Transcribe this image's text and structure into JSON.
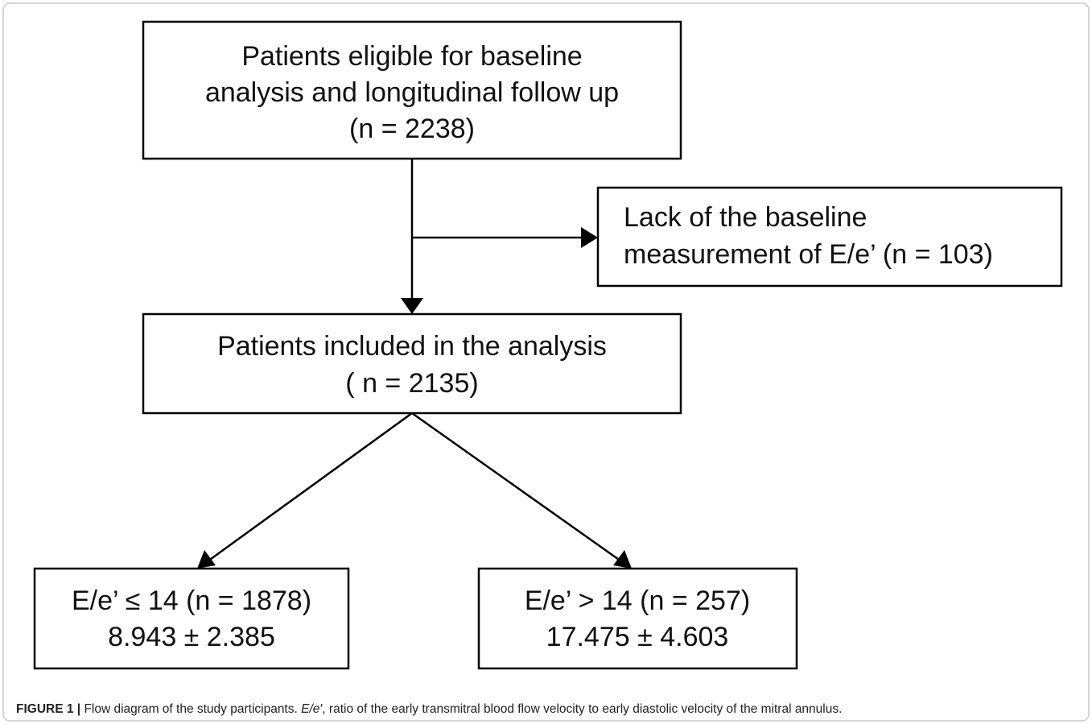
{
  "nodes": [
    {
      "lines": [
        "Patients eligible for baseline",
        "analysis and longitudinal follow up",
        "(n = 2238)"
      ]
    },
    {
      "lines": [
        "Lack of the baseline",
        "measurement of E/e’ (n = 103)"
      ]
    },
    {
      "lines": [
        "Patients included in the analysis",
        "( n = 2135)"
      ]
    },
    {
      "lines": [
        "E/e’ ≤ 14 (n = 1878)",
        "8.943 ± 2.385"
      ]
    },
    {
      "lines": [
        "E/e’ > 14 (n = 257)",
        "17.475 ± 4.603"
      ]
    }
  ],
  "caption": {
    "label": "FIGURE 1 |",
    "text": "Flow diagram of the study participants.",
    "term": "E/e′",
    "definition": ", ratio of the early transmitral blood flow velocity to early diastolic velocity of the mitral annulus."
  }
}
